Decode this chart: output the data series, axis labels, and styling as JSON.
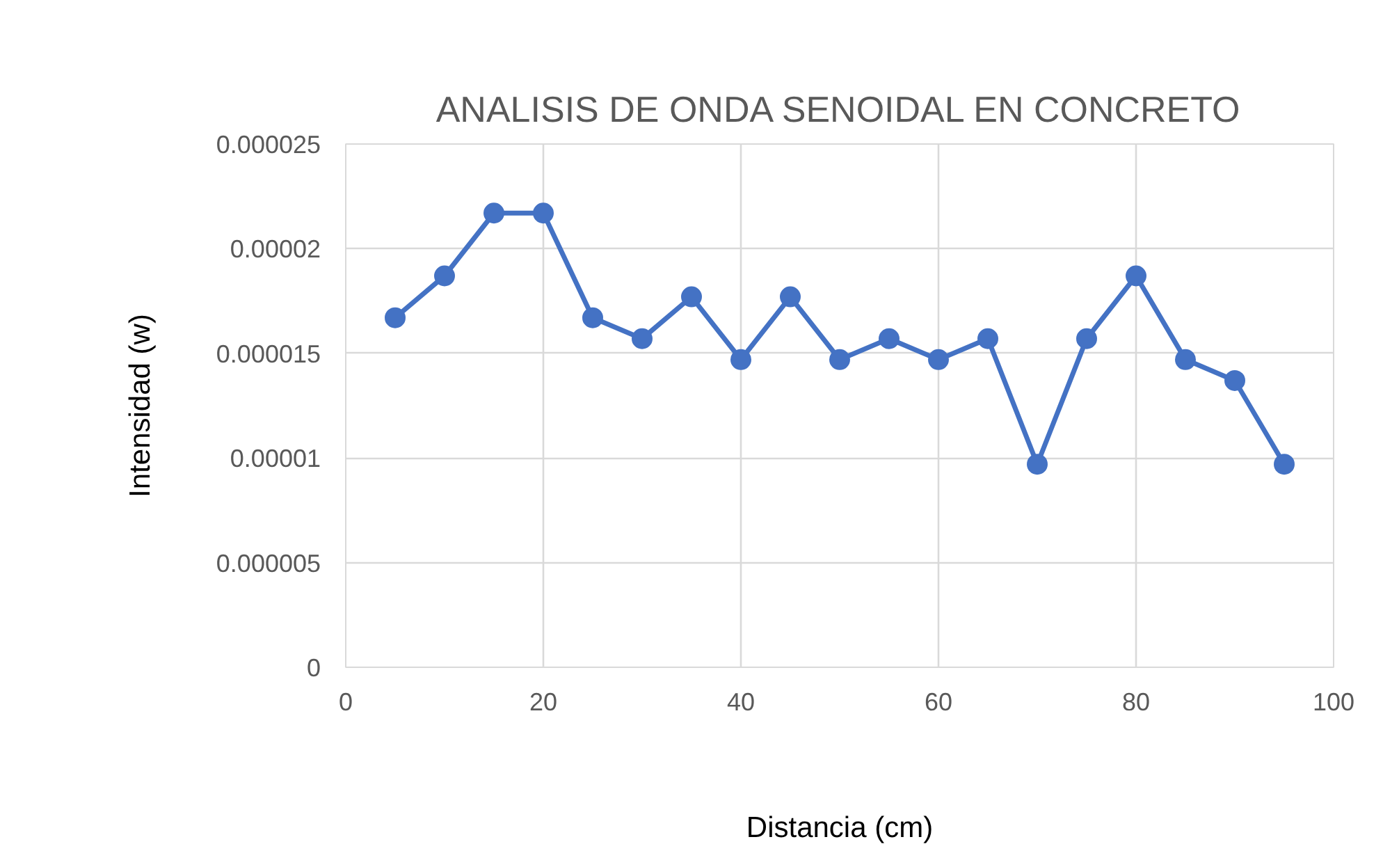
{
  "chart_data": {
    "type": "line",
    "title": "ANALISIS DE ONDA SENOIDAL EN CONCRETO",
    "xlabel": "Distancia (cm)",
    "ylabel": "Intensidad (w)",
    "x": [
      5,
      10,
      15,
      20,
      25,
      30,
      35,
      40,
      45,
      50,
      55,
      60,
      65,
      70,
      75,
      80,
      85,
      90,
      95
    ],
    "series": [
      {
        "color": "#4472c4",
        "values": [
          1.67e-05,
          1.87e-05,
          2.17e-05,
          2.17e-05,
          1.67e-05,
          1.57e-05,
          1.77e-05,
          1.47e-05,
          1.77e-05,
          1.47e-05,
          1.57e-05,
          1.47e-05,
          1.57e-05,
          9.7e-06,
          1.57e-05,
          1.87e-05,
          1.47e-05,
          1.37e-05,
          9.7e-06
        ]
      }
    ],
    "xlim": [
      0,
      100
    ],
    "xticks": [
      0,
      20,
      40,
      60,
      80,
      100
    ],
    "ylim": [
      0,
      2.5e-05
    ],
    "yticks": [
      {
        "value": 0,
        "label": "0"
      },
      {
        "value": 5e-06,
        "label": "0.000005"
      },
      {
        "value": 1e-05,
        "label": "0.00001"
      },
      {
        "value": 1.5e-05,
        "label": "0.000015"
      },
      {
        "value": 2e-05,
        "label": "0.00002"
      },
      {
        "value": 2.5e-05,
        "label": "0.000025"
      }
    ],
    "grid": true,
    "marker": "circle",
    "line_style": "solid"
  }
}
